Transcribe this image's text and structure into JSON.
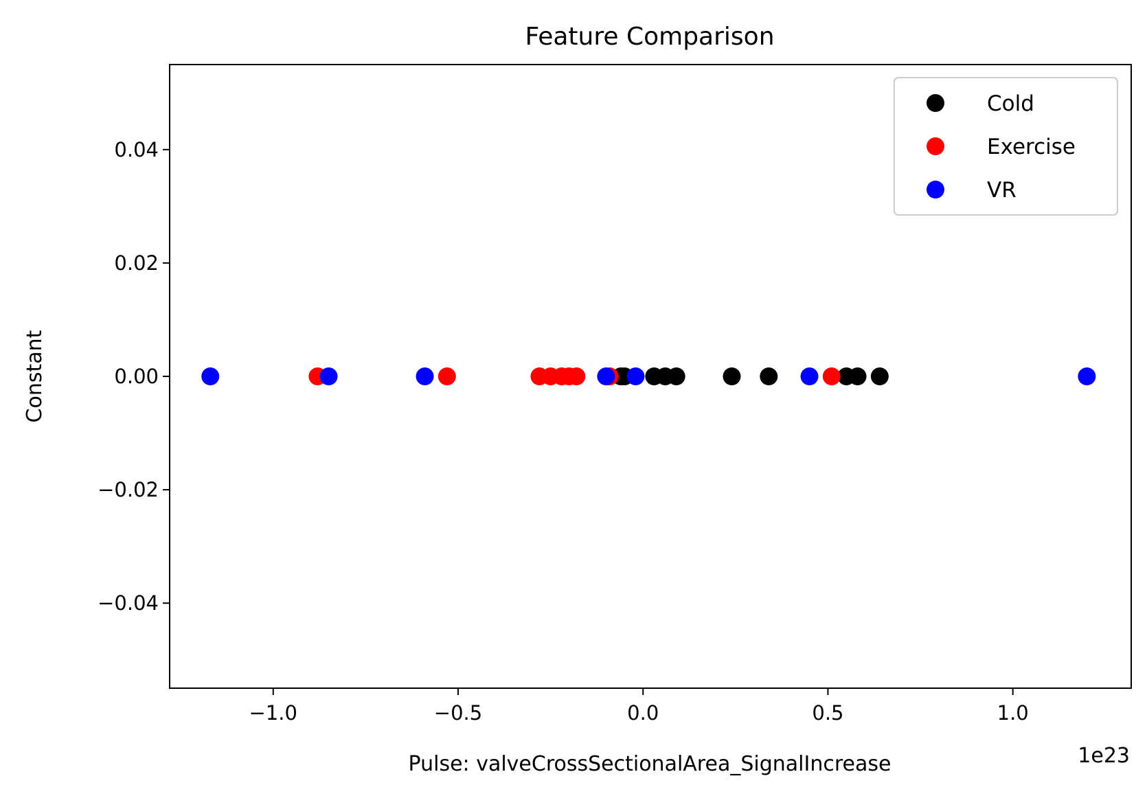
{
  "chart_data": {
    "type": "scatter",
    "title": "Feature Comparison",
    "xlabel": "Pulse: valveCrossSectionalArea_SignalIncrease",
    "ylabel": "Constant",
    "x_offset_text": "1e23",
    "x_ticks": [
      -1.0,
      -0.5,
      0.0,
      0.5,
      1.0
    ],
    "x_tick_labels": [
      "−1.0",
      "−0.5",
      "0.0",
      "0.5",
      "1.0"
    ],
    "y_ticks": [
      0.04,
      0.02,
      0.0,
      -0.02,
      -0.04
    ],
    "y_tick_labels": [
      "0.04",
      "0.02",
      "0.00",
      "−0.02",
      "−0.04"
    ],
    "xlim": [
      -1.28,
      1.32
    ],
    "ylim": [
      -0.055,
      0.055
    ],
    "grid": false,
    "legend_position": "top-right",
    "series": [
      {
        "name": "Cold",
        "color": "#000000",
        "x": [
          -0.06,
          -0.05,
          0.03,
          0.06,
          0.09,
          0.24,
          0.34,
          0.55,
          0.58,
          0.64
        ],
        "y": [
          0,
          0,
          0,
          0,
          0,
          0,
          0,
          0,
          0,
          0
        ]
      },
      {
        "name": "Exercise",
        "color": "#ff0000",
        "x": [
          -0.88,
          -0.53,
          -0.28,
          -0.25,
          -0.22,
          -0.2,
          -0.18,
          -0.09,
          0.51
        ],
        "y": [
          0,
          0,
          0,
          0,
          0,
          0,
          0,
          0,
          0
        ]
      },
      {
        "name": "VR",
        "color": "#0000ff",
        "x": [
          -1.17,
          -0.85,
          -0.59,
          -0.1,
          -0.02,
          0.45,
          1.2
        ],
        "y": [
          0,
          0,
          0,
          0,
          0,
          0,
          0
        ]
      }
    ]
  }
}
